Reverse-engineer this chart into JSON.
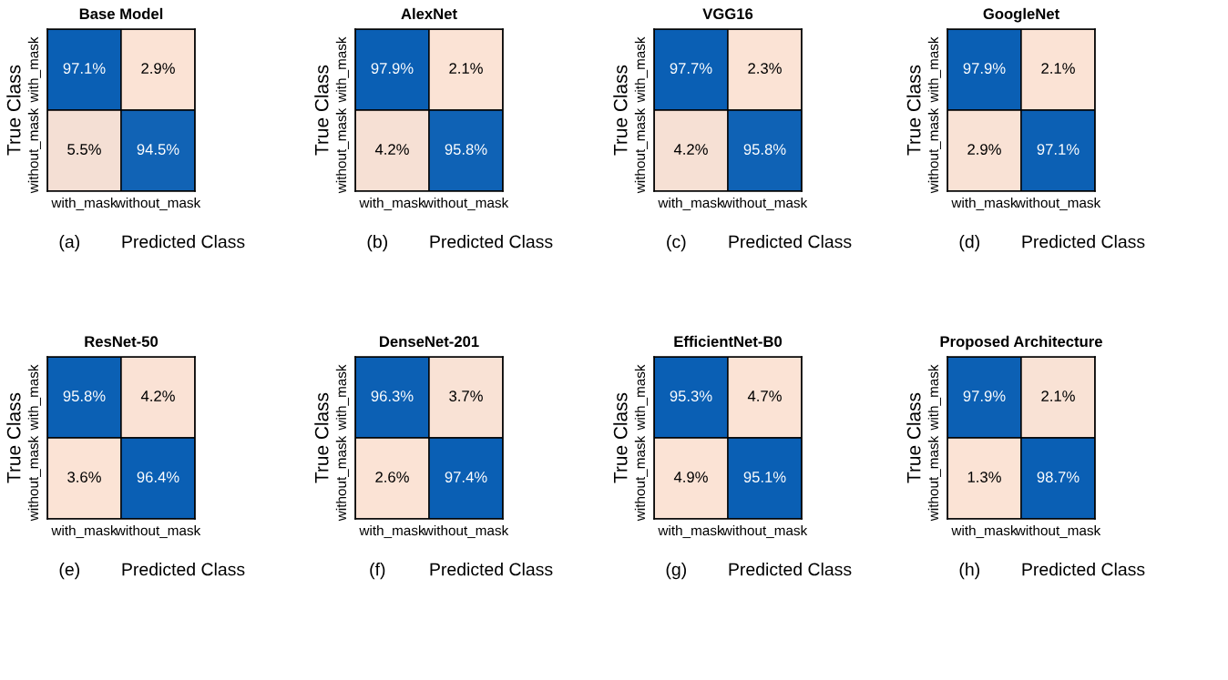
{
  "chart_data": [
    {
      "type": "heatmap",
      "title": "Base Model",
      "xlabel": "Predicted Class",
      "ylabel": "True Class",
      "categories": [
        "with_mask",
        "without_mask"
      ],
      "y_categories": [
        "with_mask",
        "without_mask"
      ],
      "cells": [
        [
          97.1,
          2.9
        ],
        [
          5.5,
          94.5
        ]
      ],
      "cell_labels": [
        [
          "97.1%",
          "2.9%"
        ],
        [
          "5.5%",
          "94.5%"
        ]
      ],
      "colors": [
        "#fbe3d5",
        "#0a5fb4"
      ],
      "annotations": [
        "(a)"
      ]
    },
    {
      "type": "heatmap",
      "title": "AlexNet",
      "xlabel": "Predicted Class",
      "ylabel": "True Class",
      "categories": [
        "with_mask",
        "without_mask"
      ],
      "y_categories": [
        "with_mask",
        "without_mask"
      ],
      "cells": [
        [
          97.9,
          2.1
        ],
        [
          4.2,
          95.8
        ]
      ],
      "cell_labels": [
        [
          "97.9%",
          "2.1%"
        ],
        [
          "4.2%",
          "95.8%"
        ]
      ],
      "colors": [
        "#fbe3d5",
        "#0a5fb4"
      ],
      "annotations": [
        "(b)"
      ]
    },
    {
      "type": "heatmap",
      "title": "VGG16",
      "xlabel": "Predicted Class",
      "ylabel": "True Class",
      "categories": [
        "with_mask",
        "without_mask"
      ],
      "y_categories": [
        "with_mask",
        "without_mask"
      ],
      "cells": [
        [
          97.7,
          2.3
        ],
        [
          4.2,
          95.8
        ]
      ],
      "cell_labels": [
        [
          "97.7%",
          "2.3%"
        ],
        [
          "4.2%",
          "95.8%"
        ]
      ],
      "colors": [
        "#fbe3d5",
        "#0a5fb4"
      ],
      "annotations": [
        "(c)"
      ]
    },
    {
      "type": "heatmap",
      "title": "GoogleNet",
      "xlabel": "Predicted Class",
      "ylabel": "True Class",
      "categories": [
        "with_mask",
        "without_mask"
      ],
      "y_categories": [
        "with_mask",
        "without_mask"
      ],
      "cells": [
        [
          97.9,
          2.1
        ],
        [
          2.9,
          97.1
        ]
      ],
      "cell_labels": [
        [
          "97.9%",
          "2.1%"
        ],
        [
          "2.9%",
          "97.1%"
        ]
      ],
      "colors": [
        "#fbe3d5",
        "#0a5fb4"
      ],
      "annotations": [
        "(d)"
      ]
    },
    {
      "type": "heatmap",
      "title": "ResNet-50",
      "xlabel": "Predicted Class",
      "ylabel": "True Class",
      "categories": [
        "with_mask",
        "without_mask"
      ],
      "y_categories": [
        "with_mask",
        "without_mask"
      ],
      "cells": [
        [
          95.8,
          4.2
        ],
        [
          3.6,
          96.4
        ]
      ],
      "cell_labels": [
        [
          "95.8%",
          "4.2%"
        ],
        [
          "3.6%",
          "96.4%"
        ]
      ],
      "colors": [
        "#fbe3d5",
        "#0a5fb4"
      ],
      "annotations": [
        "(e)"
      ]
    },
    {
      "type": "heatmap",
      "title": "DenseNet-201",
      "xlabel": "Predicted Class",
      "ylabel": "True Class",
      "categories": [
        "with_mask",
        "without_mask"
      ],
      "y_categories": [
        "with_mask",
        "without_mask"
      ],
      "cells": [
        [
          96.3,
          3.7
        ],
        [
          2.6,
          97.4
        ]
      ],
      "cell_labels": [
        [
          "96.3%",
          "3.7%"
        ],
        [
          "2.6%",
          "97.4%"
        ]
      ],
      "colors": [
        "#fbe3d5",
        "#0a5fb4"
      ],
      "annotations": [
        "(f)"
      ]
    },
    {
      "type": "heatmap",
      "title": "EfficientNet-B0",
      "xlabel": "Predicted Class",
      "ylabel": "True Class",
      "categories": [
        "with_mask",
        "without_mask"
      ],
      "y_categories": [
        "with_mask",
        "without_mask"
      ],
      "cells": [
        [
          95.3,
          4.7
        ],
        [
          4.9,
          95.1
        ]
      ],
      "cell_labels": [
        [
          "95.3%",
          "4.7%"
        ],
        [
          "4.9%",
          "95.1%"
        ]
      ],
      "colors": [
        "#fbe3d5",
        "#0a5fb4"
      ],
      "annotations": [
        "(g)"
      ]
    },
    {
      "type": "heatmap",
      "title": "Proposed Architecture",
      "xlabel": "Predicted Class",
      "ylabel": "True Class",
      "categories": [
        "with_mask",
        "without_mask"
      ],
      "y_categories": [
        "with_mask",
        "without_mask"
      ],
      "cells": [
        [
          97.9,
          2.1
        ],
        [
          1.3,
          98.7
        ]
      ],
      "cell_labels": [
        [
          "97.9%",
          "2.1%"
        ],
        [
          "1.3%",
          "98.7%"
        ]
      ],
      "colors": [
        "#fbe3d5",
        "#0a5fb4"
      ],
      "annotations": [
        "(h)"
      ]
    }
  ]
}
